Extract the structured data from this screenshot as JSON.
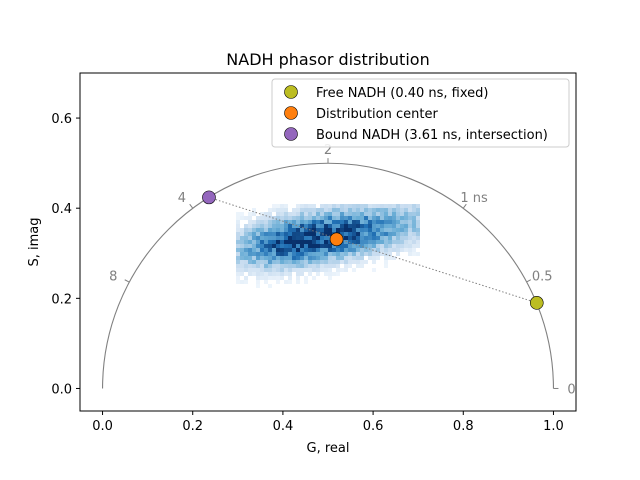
{
  "chart_data": {
    "type": "scatter",
    "title": "NADH phasor distribution",
    "xlabel": "G, real",
    "ylabel": "S, imag",
    "xlim": [
      -0.05,
      1.05
    ],
    "ylim": [
      -0.05,
      0.7
    ],
    "x_ticks": [
      {
        "value": 0.0,
        "label": "0.0"
      },
      {
        "value": 0.2,
        "label": "0.2"
      },
      {
        "value": 0.4,
        "label": "0.4"
      },
      {
        "value": 0.6,
        "label": "0.6"
      },
      {
        "value": 0.8,
        "label": "0.8"
      },
      {
        "value": 1.0,
        "label": "1.0"
      }
    ],
    "y_ticks": [
      {
        "value": 0.0,
        "label": "0.0"
      },
      {
        "value": 0.2,
        "label": "0.2"
      },
      {
        "value": 0.4,
        "label": "0.4"
      },
      {
        "value": 0.6,
        "label": "0.6"
      }
    ],
    "universal_semicircle": {
      "center": [
        0.5,
        0.0
      ],
      "radius": 0.5,
      "color": "#808080"
    },
    "lifetime_labels": [
      {
        "label": "0",
        "g": 1.0,
        "s": 0.0
      },
      {
        "label": "0.5",
        "g": 0.94,
        "s": 0.236
      },
      {
        "label": "1 ns",
        "g": 0.8,
        "s": 0.4
      },
      {
        "label": "2",
        "g": 0.5,
        "s": 0.5
      },
      {
        "label": "4",
        "g": 0.2,
        "s": 0.4
      },
      {
        "label": "8",
        "g": 0.059,
        "s": 0.236
      }
    ],
    "series": [
      {
        "name": "Free NADH (0.40 ns, fixed)",
        "g": 0.963,
        "s": 0.19,
        "color": "#bcbd22"
      },
      {
        "name": "Distribution center",
        "g": 0.519,
        "s": 0.331,
        "color": "#ff7f0e"
      },
      {
        "name": "Bound NADH (3.61 ns, intersection)",
        "g": 0.236,
        "s": 0.424,
        "color": "#9467bd"
      }
    ],
    "line_through": {
      "from": "Bound NADH (3.61 ns, intersection)",
      "to": "Free NADH (0.40 ns, fixed)",
      "style": "dotted",
      "color": "#808080"
    },
    "histogram": {
      "colormap": "Blues",
      "g_range": [
        0.3,
        0.7
      ],
      "s_range": [
        0.25,
        0.4
      ],
      "peak": [
        0.45,
        0.33
      ]
    },
    "legend_position": "top-right",
    "grid": false
  }
}
